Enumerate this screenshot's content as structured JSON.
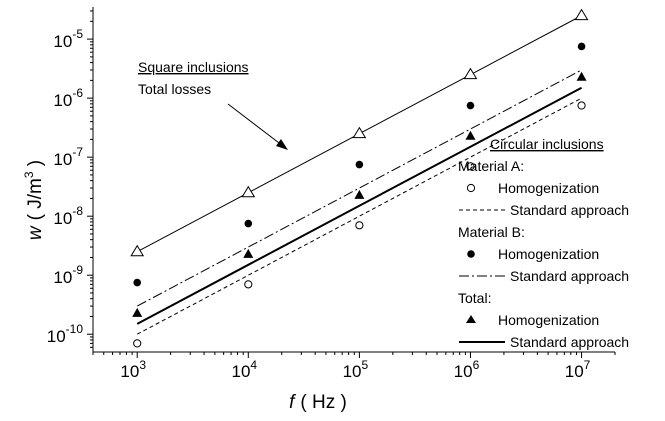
{
  "chart_data": {
    "type": "scatter",
    "xscale": "log",
    "yscale": "log",
    "xlim": [
      400,
      20000000
    ],
    "ylim": [
      5e-11,
      3.5e-05
    ],
    "x_ticks": [
      {
        "base": "10",
        "exp": "3",
        "value": 1000
      },
      {
        "base": "10",
        "exp": "4",
        "value": 10000
      },
      {
        "base": "10",
        "exp": "5",
        "value": 100000
      },
      {
        "base": "10",
        "exp": "6",
        "value": 1000000
      },
      {
        "base": "10",
        "exp": "7",
        "value": 10000000
      }
    ],
    "y_ticks": [
      {
        "base": "10",
        "exp": "-10",
        "value": 1e-10
      },
      {
        "base": "10",
        "exp": "-9",
        "value": 1e-09
      },
      {
        "base": "10",
        "exp": "-8",
        "value": 1e-08
      },
      {
        "base": "10",
        "exp": "-7",
        "value": 1e-07
      },
      {
        "base": "10",
        "exp": "-6",
        "value": 1e-06
      },
      {
        "base": "10",
        "exp": "-5",
        "value": 1e-05
      }
    ],
    "xlabel": {
      "var": "f",
      "unit": "( Hz )"
    },
    "ylabel": {
      "var": "w",
      "unit_pre": "( J/m",
      "unit_exp": "3",
      "unit_post": " )"
    },
    "x": [
      1000,
      10000,
      100000,
      1000000,
      10000000
    ],
    "series": [
      {
        "name": "Square inclusions Total losses",
        "kind": "line+marker",
        "marker": "open-triangle",
        "line": "thin",
        "values": [
          2.5e-09,
          2.5e-08,
          2.5e-07,
          2.5e-06,
          2.5e-05
        ]
      },
      {
        "name": "Material A Homogenization",
        "kind": "marker",
        "marker": "open-circle",
        "values": [
          7e-11,
          7e-10,
          7e-09,
          7e-08,
          7.5e-07
        ]
      },
      {
        "name": "Material A Standard approach",
        "kind": "line",
        "line": "dashed",
        "values": [
          1e-10,
          1e-09,
          1e-08,
          1e-07,
          1e-06
        ]
      },
      {
        "name": "Material B Homogenization",
        "kind": "marker",
        "marker": "filled-circle",
        "values": [
          7.5e-10,
          7.5e-09,
          7.5e-08,
          7.5e-07,
          7.5e-06
        ]
      },
      {
        "name": "Material B Standard approach",
        "kind": "line",
        "line": "dashdot",
        "values": [
          3e-10,
          3e-09,
          3e-08,
          3e-07,
          3e-06
        ]
      },
      {
        "name": "Total Homogenization",
        "kind": "marker",
        "marker": "filled-triangle",
        "values": [
          2.3e-10,
          2.3e-09,
          2.3e-08,
          2.3e-07,
          2.3e-06
        ]
      },
      {
        "name": "Total Standard approach",
        "kind": "line",
        "line": "solid-thick",
        "values": [
          1.5e-10,
          1.5e-09,
          1.5e-08,
          1.5e-07,
          1.5e-06
        ]
      }
    ],
    "annotation": {
      "title": "Square inclusions",
      "subtitle": "Total losses"
    },
    "legend": {
      "placement": "right",
      "title": "Circular inclusions",
      "groups": [
        {
          "label": "Material A:",
          "homog": "Homogenization",
          "standard": "Standard approach"
        },
        {
          "label": "Material B:",
          "homog": "Homogenization",
          "standard": "Standard approach"
        },
        {
          "label": "Total:",
          "homog": "Homogenization",
          "standard": "Standard approach"
        }
      ]
    }
  }
}
